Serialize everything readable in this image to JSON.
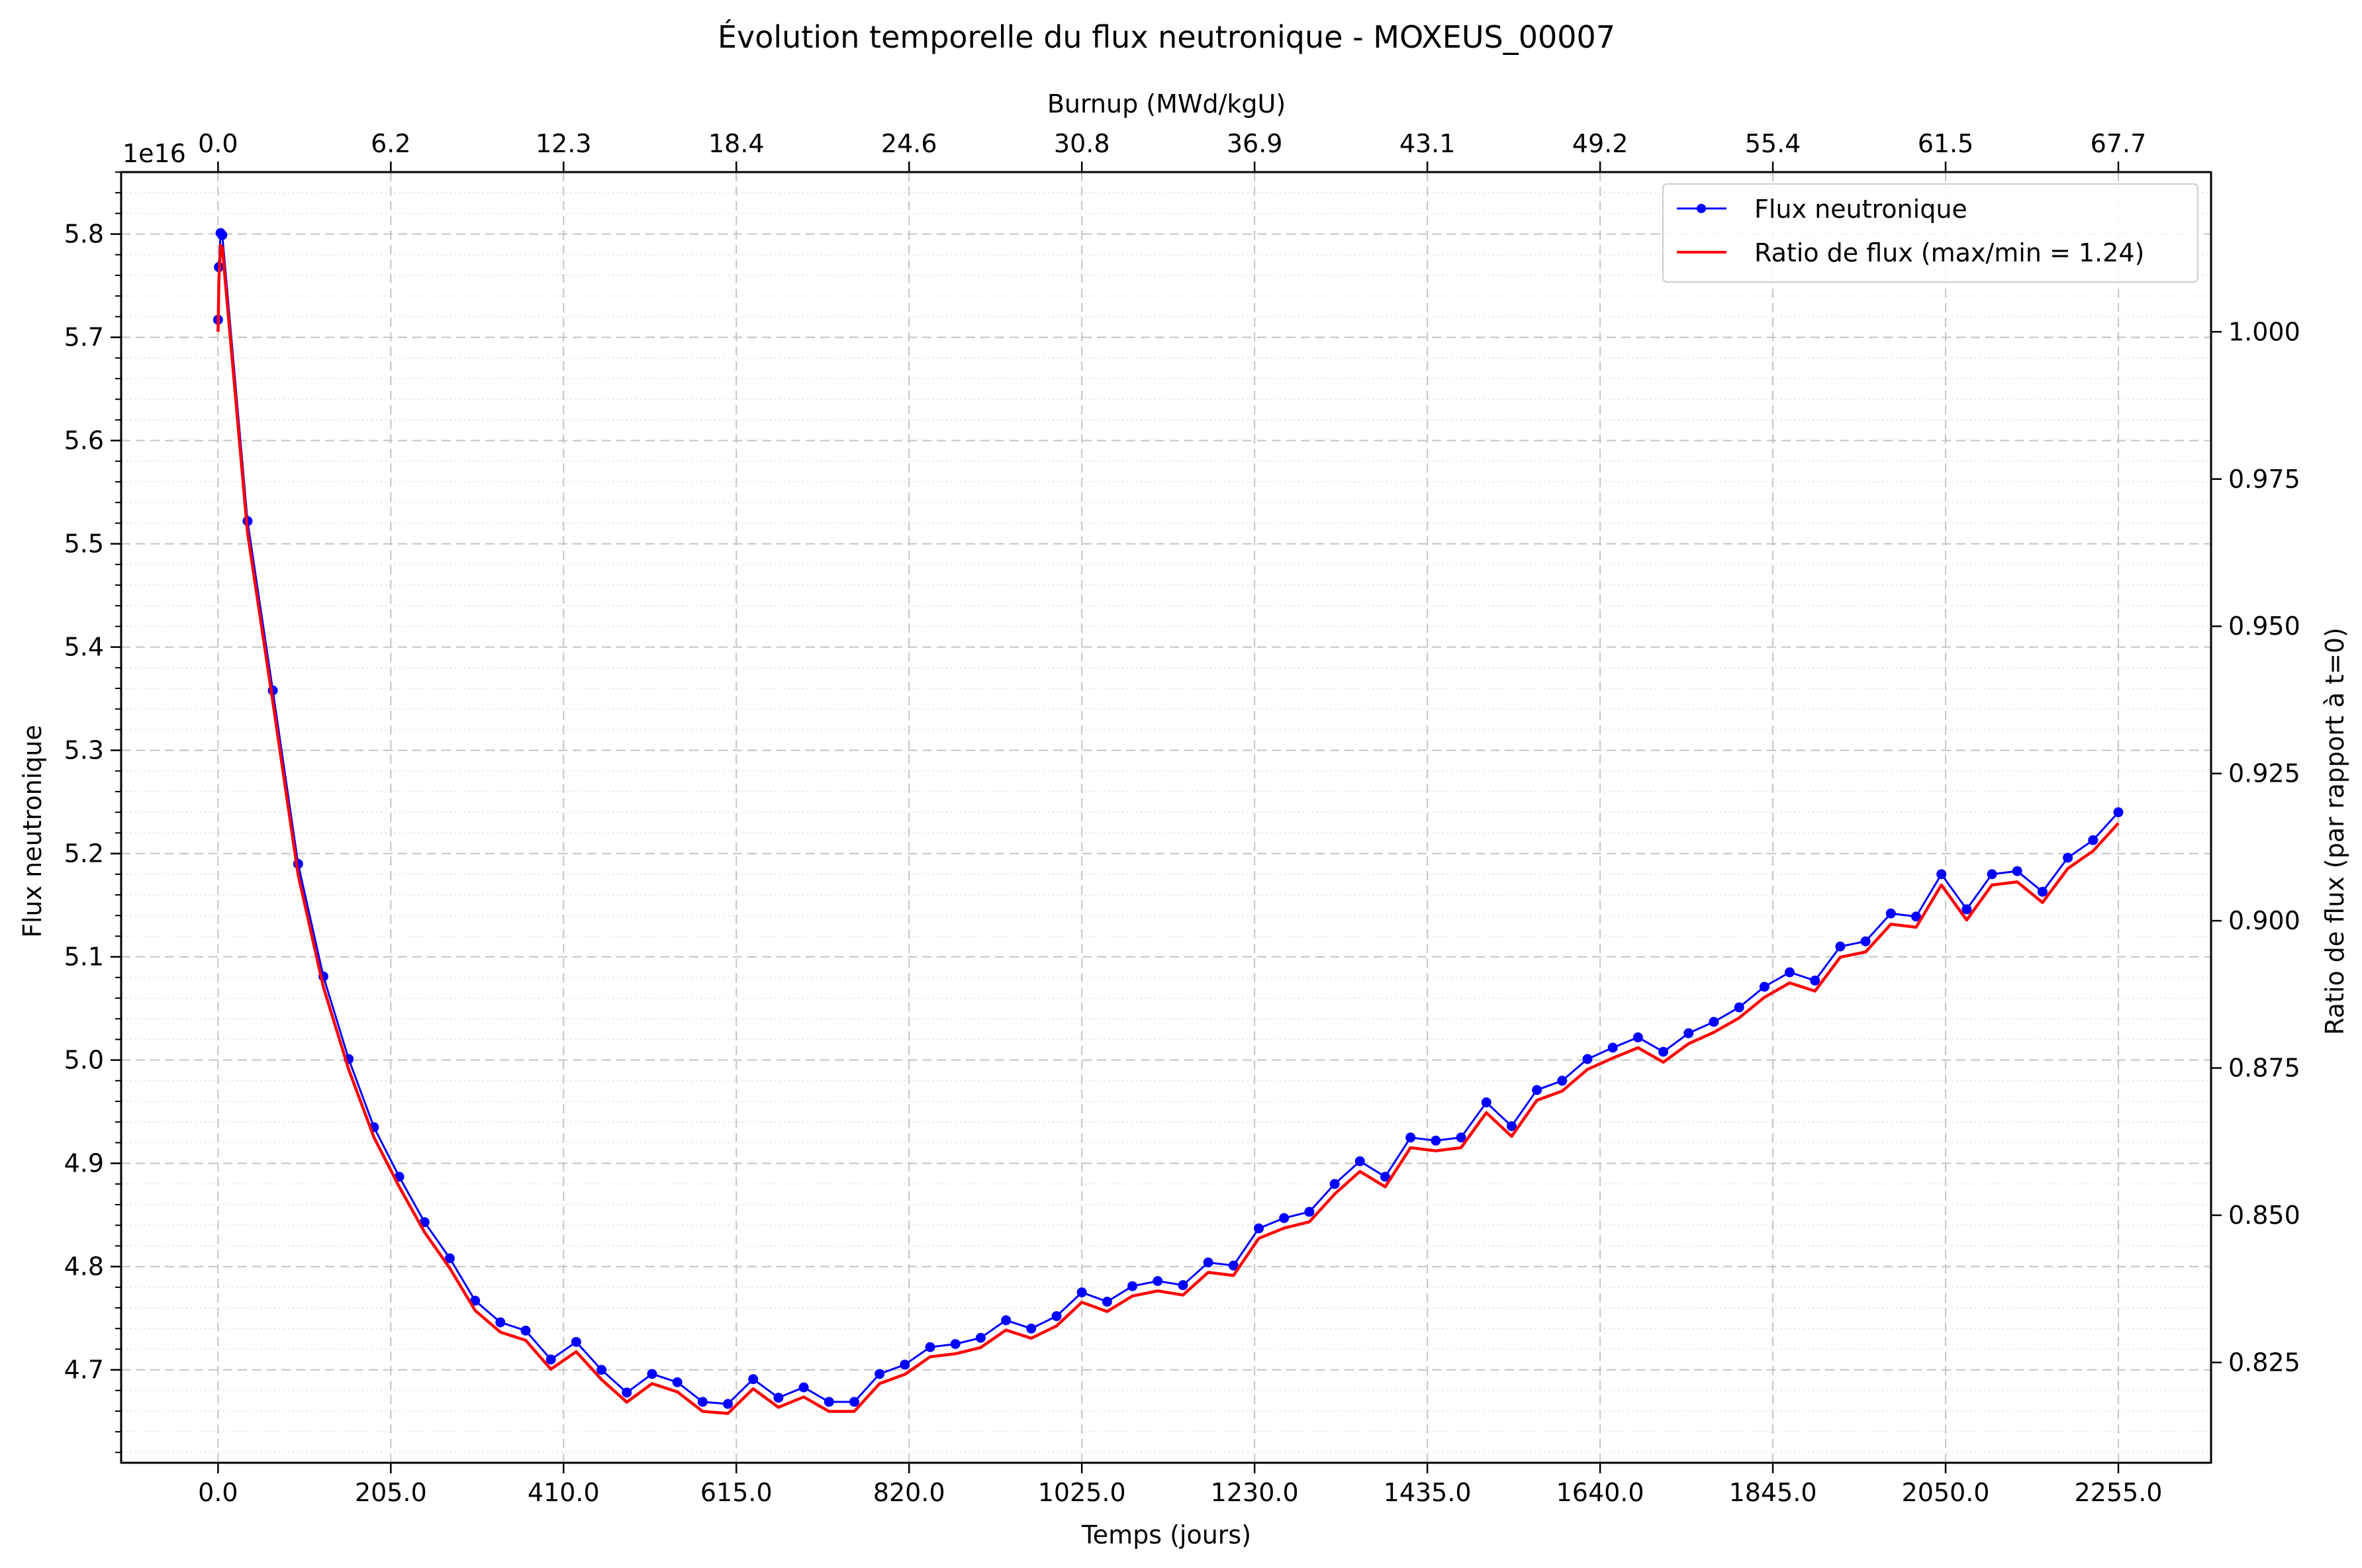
{
  "chart_data": {
    "type": "line",
    "title": "Évolution temporelle du flux neutronique - MOXEUS_00007",
    "xlabel": "Temps (jours)",
    "ylabel": "Flux neutronique",
    "y_offset_text": "1e16",
    "secondary_x_label": "Burnup (MWd/kgU)",
    "secondary_y_label": "Ratio de flux (par rapport à t=0)",
    "xlim": [
      -115,
      2365
    ],
    "ylim": [
      4.61,
      5.86
    ],
    "y2lim": [
      0.80797,
      1.02712
    ],
    "x_ticks": [
      0,
      205,
      410,
      615,
      820,
      1025,
      1230,
      1435,
      1640,
      1845,
      2050,
      2255
    ],
    "x_tick_labels": [
      "0.0",
      "205.0",
      "410.0",
      "615.0",
      "820.0",
      "1025.0",
      "1230.0",
      "1435.0",
      "1640.0",
      "1845.0",
      "2050.0",
      "2255.0"
    ],
    "top_tick_labels": [
      "0.0",
      "6.2",
      "12.3",
      "18.4",
      "24.6",
      "30.8",
      "36.9",
      "43.1",
      "49.2",
      "55.4",
      "61.5",
      "67.7"
    ],
    "y_ticks": [
      4.7,
      4.8,
      4.9,
      5.0,
      5.1,
      5.2,
      5.3,
      5.4,
      5.5,
      5.6,
      5.7,
      5.8
    ],
    "y_tick_labels": [
      "4.7",
      "4.8",
      "4.9",
      "5.0",
      "5.1",
      "5.2",
      "5.3",
      "5.4",
      "5.5",
      "5.6",
      "5.7",
      "5.8"
    ],
    "y2_ticks": [
      0.825,
      0.85,
      0.875,
      0.9,
      0.925,
      0.95,
      0.975,
      1.0
    ],
    "y2_tick_labels": [
      "0.825",
      "0.850",
      "0.875",
      "0.900",
      "0.925",
      "0.950",
      "0.975",
      "1.000"
    ],
    "grid": true,
    "legend_position": "top-right",
    "series": [
      {
        "name": "Flux neutronique",
        "color": "#0000ff",
        "marker": "circle",
        "x": [
          0,
          1,
          3,
          5,
          35,
          65,
          95,
          125,
          155,
          185,
          215,
          245,
          275,
          305,
          335,
          365,
          395,
          425,
          455,
          485,
          515,
          545,
          575,
          605,
          635,
          665,
          695,
          725,
          755,
          785,
          815,
          845,
          875,
          905,
          935,
          965,
          995,
          1025,
          1055,
          1085,
          1115,
          1145,
          1175,
          1205,
          1235,
          1265,
          1295,
          1325,
          1355,
          1385,
          1415,
          1445,
          1475,
          1505,
          1535,
          1565,
          1595,
          1625,
          1655,
          1685,
          1715,
          1745,
          1775,
          1805,
          1835,
          1865,
          1895,
          1925,
          1955,
          1985,
          2015,
          2045,
          2075,
          2105,
          2135,
          2165,
          2195,
          2225,
          2255
        ],
        "y": [
          5.717,
          5.768,
          5.801,
          5.799,
          5.522,
          5.358,
          5.19,
          5.081,
          5.001,
          4.935,
          4.887,
          4.843,
          4.808,
          4.767,
          4.746,
          4.738,
          4.71,
          4.727,
          4.7,
          4.678,
          4.696,
          4.688,
          4.669,
          4.667,
          4.691,
          4.673,
          4.683,
          4.669,
          4.669,
          4.696,
          4.705,
          4.722,
          4.725,
          4.731,
          4.748,
          4.74,
          4.752,
          4.775,
          4.766,
          4.781,
          4.786,
          4.782,
          4.804,
          4.801,
          4.837,
          4.847,
          4.853,
          4.88,
          4.902,
          4.887,
          4.925,
          4.922,
          4.925,
          4.959,
          4.936,
          4.971,
          4.98,
          5.001,
          5.012,
          5.022,
          5.008,
          5.026,
          5.037,
          5.051,
          5.071,
          5.085,
          5.077,
          5.11,
          5.115,
          5.142,
          5.139,
          5.18,
          5.146,
          5.18,
          5.183,
          5.163,
          5.196,
          5.213,
          5.24
        ]
      },
      {
        "name": "Ratio de flux (max/min = 1.24)",
        "color": "#ff0000",
        "axis": "secondary",
        "note_values": "ratio = flux / 5.717"
      }
    ]
  }
}
